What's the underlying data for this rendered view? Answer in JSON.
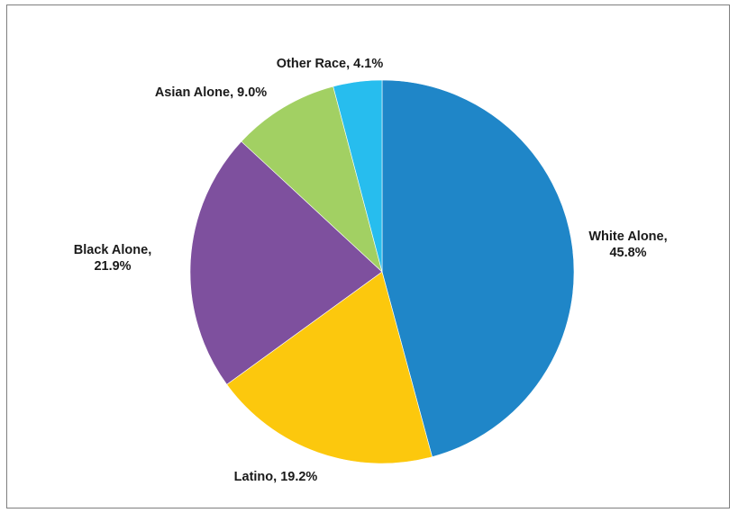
{
  "chart_data": {
    "type": "pie",
    "title": "",
    "start_angle_deg": 0,
    "direction": "clockwise",
    "slices": [
      {
        "name": "White Alone",
        "value": 45.8,
        "label_lines": [
          "White Alone,",
          "45.8%"
        ],
        "color": "#1f86c8"
      },
      {
        "name": "Latino",
        "value": 19.2,
        "label_lines": [
          "Latino, 19.2%"
        ],
        "color": "#fcc80d"
      },
      {
        "name": "Black Alone",
        "value": 21.9,
        "label_lines": [
          "Black  Alone,",
          "21.9%"
        ],
        "color": "#7e509e"
      },
      {
        "name": "Asian Alone",
        "value": 9.0,
        "label_lines": [
          "Asian Alone, 9.0%"
        ],
        "color": "#a2d063"
      },
      {
        "name": "Other Race",
        "value": 4.1,
        "label_lines": [
          "Other Race, 4.1%"
        ],
        "color": "#27bdee"
      }
    ]
  }
}
